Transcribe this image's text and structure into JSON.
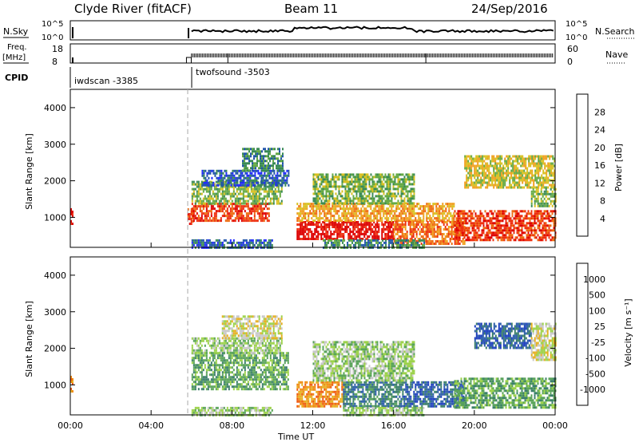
{
  "header": {
    "station": "Clyde River (fitACF)",
    "beam": "Beam 11",
    "date": "24/Sep/2016"
  },
  "strip_labels": {
    "nsky": "N.Sky",
    "nsky_ticks": [
      "10^5",
      "10^0"
    ],
    "nsearch": "N.Search",
    "nsearch_ticks": [
      "10^5",
      "10^0"
    ],
    "freq_line1": "Freq.",
    "freq_line2": "[MHz]",
    "freq_ticks": [
      "18",
      "8"
    ],
    "nave": "Nave",
    "nave_ticks": [
      "60",
      "0"
    ],
    "cpid": "CPID",
    "cpid_segments": [
      {
        "label": "iwdscan -3385",
        "start_hour": 0.0
      },
      {
        "label": "twofsound -3503",
        "start_hour": 6.0
      }
    ]
  },
  "axes": {
    "ylabel": "Slant Range [km]",
    "xlabel": "Time UT",
    "x_ticks": [
      "00:00",
      "04:00",
      "08:00",
      "12:00",
      "16:00",
      "20:00",
      "00:00"
    ],
    "y_ticks": [
      "1000",
      "2000",
      "3000",
      "4000"
    ]
  },
  "colorbars": {
    "power": {
      "label": "Power [dB]",
      "ticks": [
        "4",
        "8",
        "12",
        "16",
        "20",
        "24",
        "28"
      ],
      "colors": [
        "#1e28ff",
        "#2255aa",
        "#3a8a55",
        "#66aa44",
        "#d8c020",
        "#f0a020",
        "#ee6a10",
        "#ee3010",
        "#dd0000"
      ]
    },
    "velocity": {
      "label": "Velocity [m s⁻¹]",
      "ticks": [
        "1000",
        "500",
        "100",
        "25",
        "-25",
        "-100",
        "-500",
        "-1000"
      ],
      "colors": [
        "#1e3fbf",
        "#2d5faa",
        "#3b7f6a",
        "#5aa45a",
        "#9cd24a",
        "#c8c8c8",
        "#e6b020",
        "#f08a10",
        "#ee5a10",
        "#e20000"
      ]
    }
  },
  "chart_data": [
    {
      "type": "heatmap",
      "name": "power",
      "xlim_hours": [
        0,
        24
      ],
      "ylim_km": [
        180,
        4500
      ],
      "regions": [
        {
          "t0": 0.0,
          "t1": 0.15,
          "r0": 800,
          "r1": 1250,
          "level": 8
        },
        {
          "t0": 5.8,
          "t1": 6.1,
          "r0": 800,
          "r1": 1250,
          "level": 7
        },
        {
          "t0": 6.0,
          "t1": 9.8,
          "r0": 900,
          "r1": 1400,
          "level": 7
        },
        {
          "t0": 6.0,
          "t1": 10.5,
          "r0": 1400,
          "r1": 2000,
          "level": 3
        },
        {
          "t0": 6.5,
          "t1": 10.8,
          "r0": 1900,
          "r1": 2300,
          "level": 1
        },
        {
          "t0": 8.5,
          "t1": 10.5,
          "r0": 2300,
          "r1": 2900,
          "level": 2
        },
        {
          "t0": 6.0,
          "t1": 10.0,
          "r0": 200,
          "r1": 400,
          "level": 1
        },
        {
          "t0": 11.2,
          "t1": 16.0,
          "r0": 400,
          "r1": 900,
          "level": 8
        },
        {
          "t0": 11.2,
          "t1": 19.0,
          "r0": 900,
          "r1": 1400,
          "level": 5
        },
        {
          "t0": 16.0,
          "t1": 19.5,
          "r0": 250,
          "r1": 900,
          "level": 6
        },
        {
          "t0": 12.0,
          "t1": 17.0,
          "r0": 1400,
          "r1": 2200,
          "level": 3
        },
        {
          "t0": 19.0,
          "t1": 24.0,
          "r0": 400,
          "r1": 1200,
          "level": 7
        },
        {
          "t0": 19.5,
          "t1": 24.0,
          "r0": 1800,
          "r1": 2700,
          "level": 4
        },
        {
          "t0": 22.8,
          "t1": 24.0,
          "r0": 1300,
          "r1": 1800,
          "level": 3
        },
        {
          "t0": 12.5,
          "t1": 17.5,
          "r0": 200,
          "r1": 400,
          "level": 2
        }
      ]
    },
    {
      "type": "heatmap",
      "name": "velocity",
      "xlim_hours": [
        0,
        24
      ],
      "ylim_km": [
        180,
        4500
      ],
      "regions": [
        {
          "t0": 0.0,
          "t1": 0.15,
          "r0": 800,
          "r1": 1250,
          "level": 7
        },
        {
          "t0": 6.0,
          "t1": 10.8,
          "r0": 900,
          "r1": 1900,
          "level": 3
        },
        {
          "t0": 6.0,
          "t1": 10.5,
          "r0": 1900,
          "r1": 2300,
          "level": 4
        },
        {
          "t0": 7.5,
          "t1": 10.5,
          "r0": 2300,
          "r1": 2900,
          "level": 5
        },
        {
          "t0": 6.0,
          "t1": 10.0,
          "r0": 200,
          "r1": 400,
          "level": 4
        },
        {
          "t0": 11.2,
          "t1": 13.5,
          "r0": 400,
          "r1": 1100,
          "level": 7
        },
        {
          "t0": 13.5,
          "t1": 16.5,
          "r0": 400,
          "r1": 1100,
          "level": 2
        },
        {
          "t0": 16.5,
          "t1": 19.5,
          "r0": 400,
          "r1": 1100,
          "level": 1
        },
        {
          "t0": 12.0,
          "t1": 17.0,
          "r0": 1100,
          "r1": 2200,
          "level": 4
        },
        {
          "t0": 19.0,
          "t1": 24.0,
          "r0": 400,
          "r1": 1200,
          "level": 3
        },
        {
          "t0": 20.0,
          "t1": 22.8,
          "r0": 2000,
          "r1": 2700,
          "level": 1
        },
        {
          "t0": 22.8,
          "t1": 24.0,
          "r0": 1700,
          "r1": 2700,
          "level": 5
        },
        {
          "t0": 13.5,
          "t1": 17.5,
          "r0": 200,
          "r1": 400,
          "level": 4
        }
      ]
    }
  ]
}
